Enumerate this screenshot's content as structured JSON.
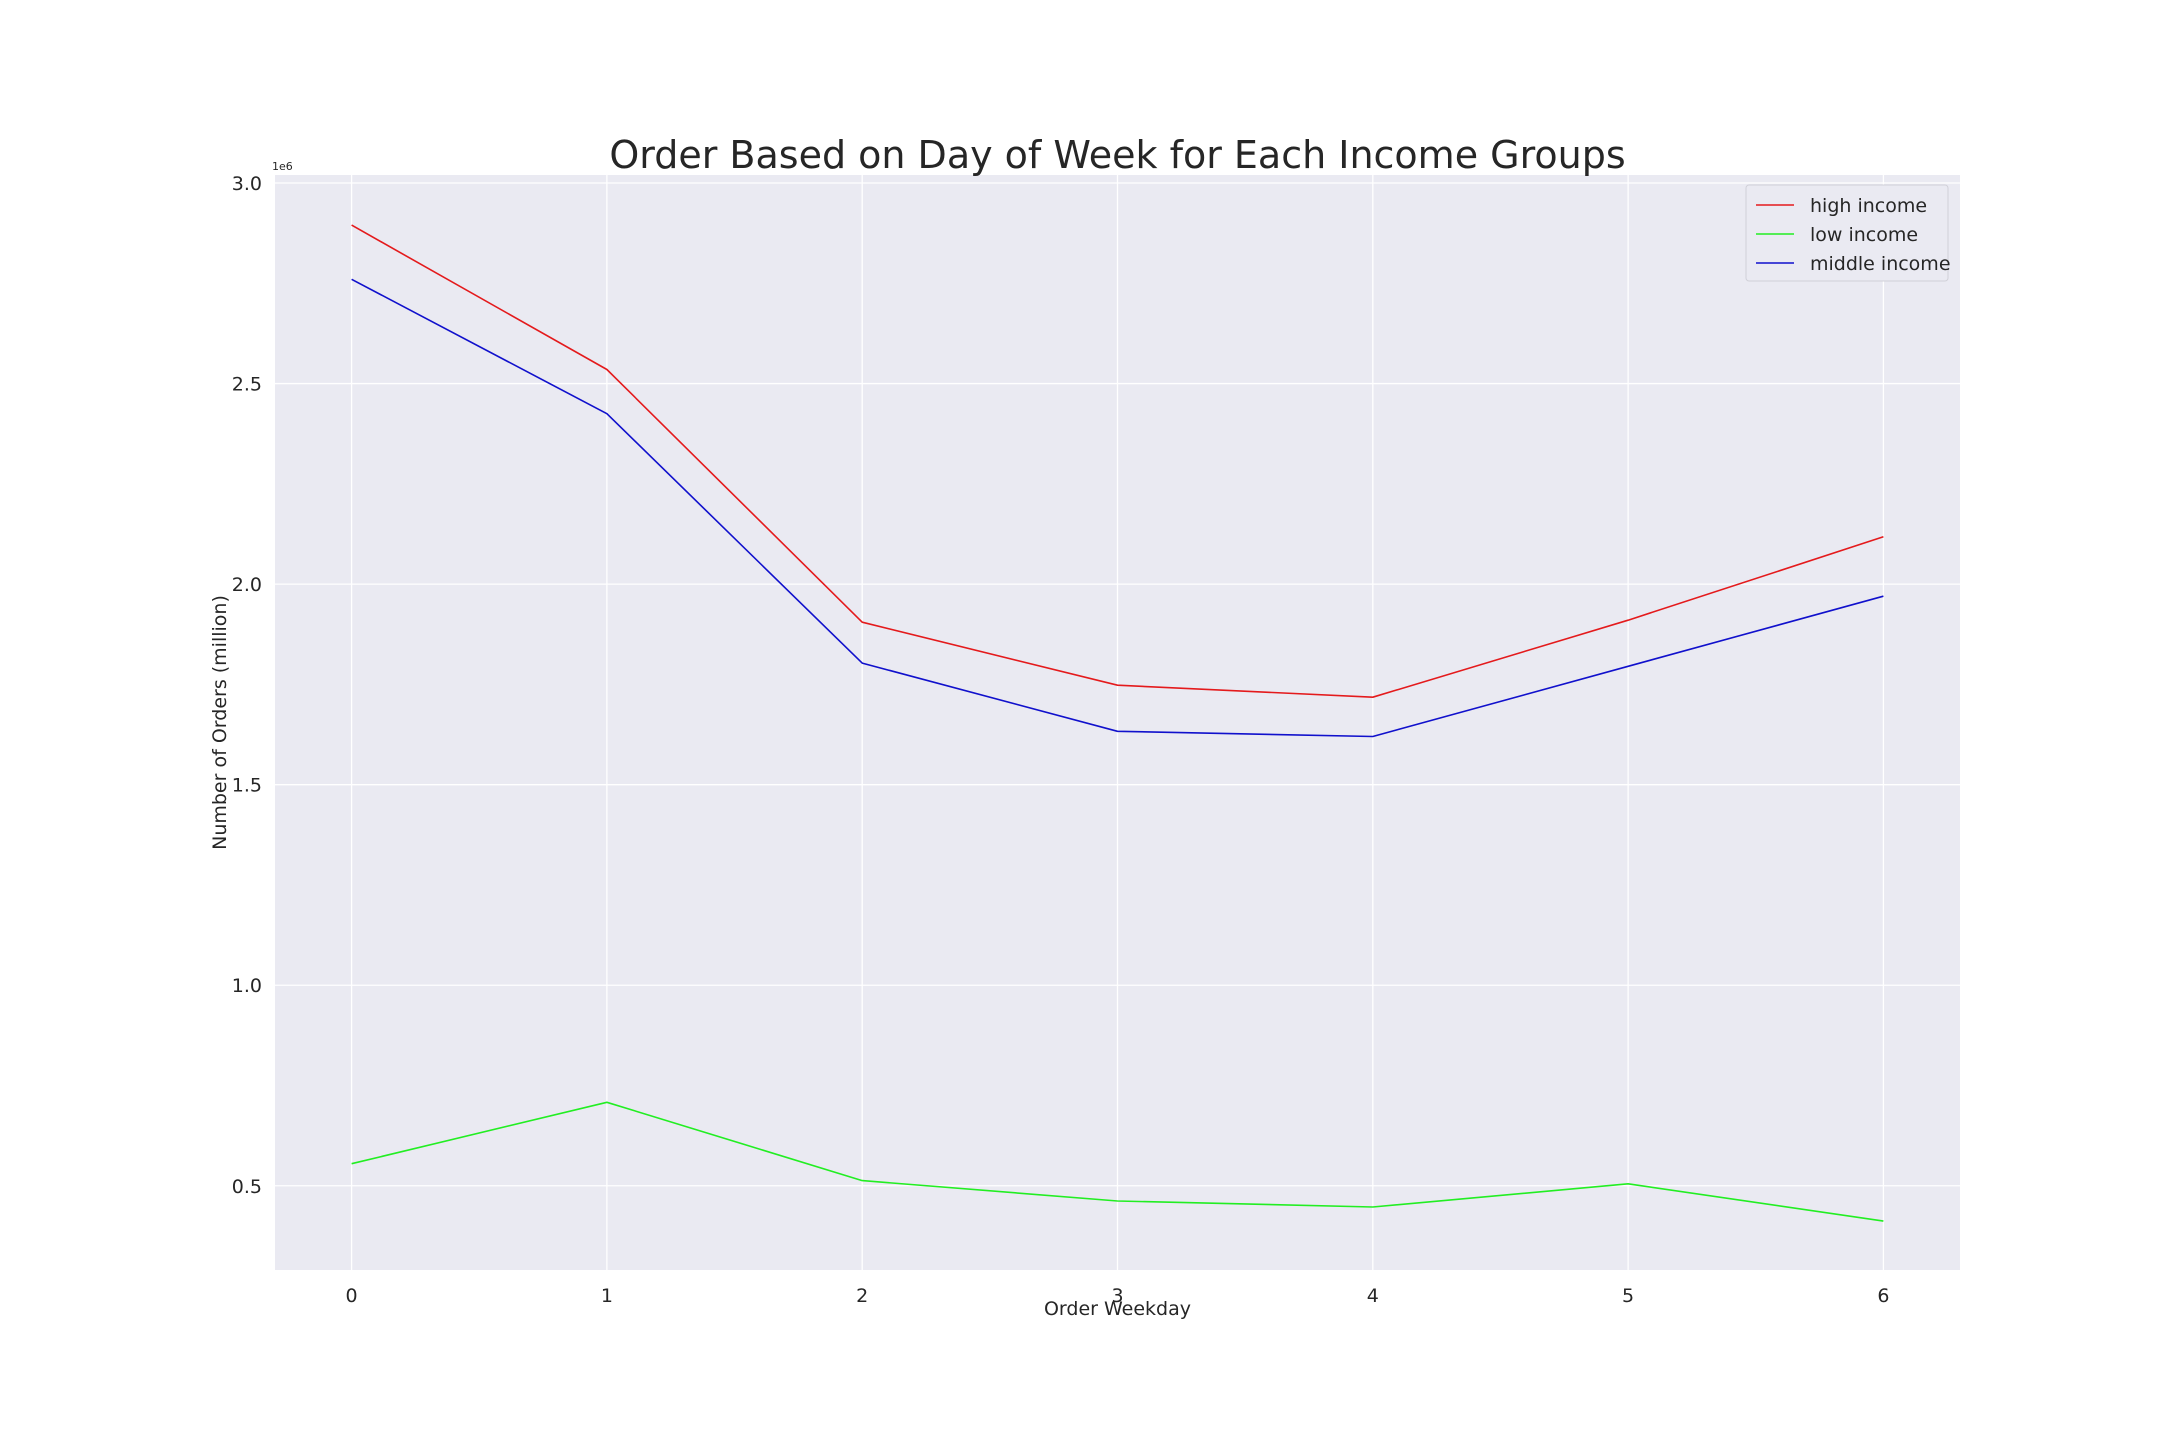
{
  "chart_data": {
    "type": "line",
    "title": "Order Based on Day of Week for Each Income Groups",
    "xlabel": "Order Weekday",
    "ylabel": "Number of Orders (million)",
    "y_offset_label": "1e6",
    "x": [
      0,
      1,
      2,
      3,
      4,
      5,
      6
    ],
    "x_tick_labels": [
      "0",
      "1",
      "2",
      "3",
      "4",
      "5",
      "6"
    ],
    "y_ticks": [
      0.5,
      1.0,
      1.5,
      2.0,
      2.5,
      3.0
    ],
    "y_tick_labels": [
      "0.5",
      "1.0",
      "1.5",
      "2.0",
      "2.5",
      "3.0"
    ],
    "xlim": [
      -0.3,
      6.3
    ],
    "ylim": [
      0.29,
      3.02
    ],
    "grid": true,
    "legend_position": "top-right",
    "series": [
      {
        "name": "high income",
        "color": "#e41a1c",
        "values": [
          2.895,
          2.535,
          1.905,
          1.748,
          1.718,
          1.91,
          2.118
        ]
      },
      {
        "name": "low income",
        "color": "#22ee22",
        "values": [
          0.555,
          0.708,
          0.513,
          0.462,
          0.447,
          0.505,
          0.412
        ]
      },
      {
        "name": "middle income",
        "color": "#1010cc",
        "values": [
          2.76,
          2.425,
          1.803,
          1.633,
          1.62,
          1.795,
          1.97
        ]
      }
    ]
  }
}
